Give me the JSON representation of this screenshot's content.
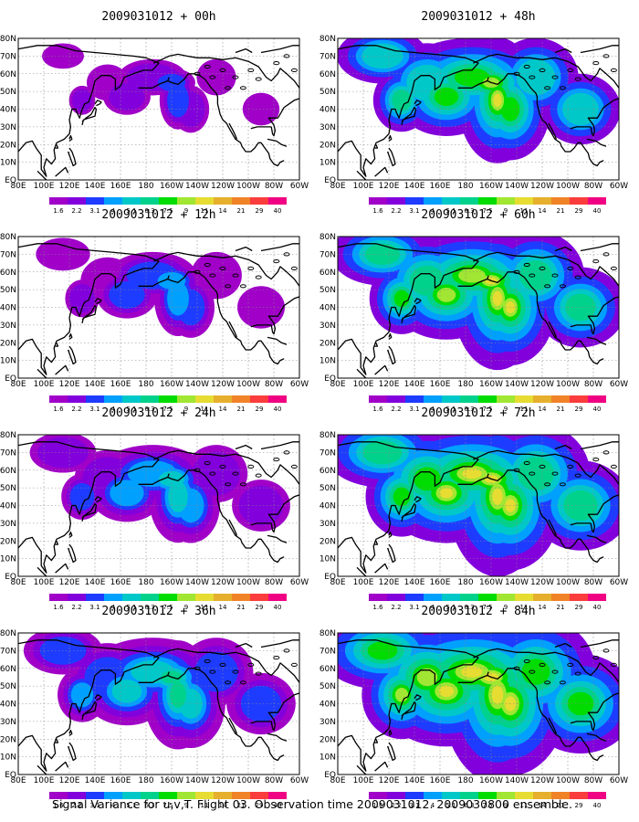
{
  "figure": {
    "caption": "Signal Variance for u,v,T. Flight 03. Observation time 2009031012. 2009030800 ensemble.",
    "lon_labels": [
      "80E",
      "100E",
      "120E",
      "140E",
      "160E",
      "180",
      "160W",
      "140W",
      "120W",
      "100W",
      "80W",
      "60W"
    ],
    "lat_labels": [
      "80N",
      "70N",
      "60N",
      "50N",
      "40N",
      "30N",
      "20N",
      "10N",
      "EQ"
    ],
    "colorbar": {
      "levels": [
        "1.6",
        "2.2",
        "3.1",
        "4",
        "5.1",
        "6.3",
        "7.5",
        "9",
        "11",
        "14",
        "21",
        "29",
        "40"
      ],
      "colors": [
        "#a000c8",
        "#8200dc",
        "#1e3cff",
        "#00a0ff",
        "#00c8c8",
        "#00d28c",
        "#00dc00",
        "#a0e632",
        "#e6dc32",
        "#e6af2d",
        "#f08228",
        "#fa3c3c",
        "#f00082"
      ]
    },
    "panels": [
      {
        "title": "2009031012 + 00h",
        "level": 0
      },
      {
        "title": "2009031012 + 48h",
        "level": 4
      },
      {
        "title": "2009031012 + 12h",
        "level": 1
      },
      {
        "title": "2009031012 + 60h",
        "level": 5
      },
      {
        "title": "2009031012 + 24h",
        "level": 2
      },
      {
        "title": "2009031012 + 72h",
        "level": 6
      },
      {
        "title": "2009031012 + 36h",
        "level": 3
      },
      {
        "title": "2009031012 + 84h",
        "level": 7
      }
    ]
  }
}
